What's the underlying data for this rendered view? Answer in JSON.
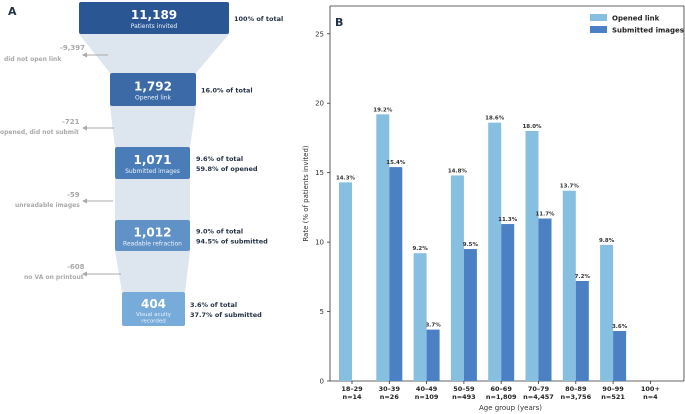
{
  "panel_a": {
    "label": "A",
    "stages": [
      {
        "value": "11,189",
        "name": "Patients invited",
        "stats": [
          "100% of total"
        ]
      },
      {
        "value": "1,792",
        "name": "Opened link",
        "stats": [
          "16.0% of total"
        ]
      },
      {
        "value": "1,071",
        "name": "Submitted images",
        "stats": [
          "9.6% of total",
          "59.8% of opened"
        ]
      },
      {
        "value": "1,012",
        "name": "Readable refraction",
        "stats": [
          "9.0% of total",
          "94.5% of submitted"
        ]
      },
      {
        "value": "404",
        "name": "Visual acuity recorded",
        "name_lines": [
          "Visual acuity",
          "recorded"
        ],
        "stats": [
          "3.6% of total",
          "37.7% of submitted"
        ]
      }
    ],
    "dropouts": [
      {
        "value": "-9,397",
        "label": "did not open link"
      },
      {
        "value": "-721",
        "label": "opened, did not submit"
      },
      {
        "value": "-59",
        "label": "unreadable images"
      },
      {
        "value": "-608",
        "label": "no VA on printout"
      }
    ],
    "colors": [
      "#2b5694",
      "#3b6aa7",
      "#4a7db8",
      "#6192c7",
      "#77abd9"
    ],
    "connector_color": "#dde5ef",
    "dropout_color": "#a9a9a9",
    "text_dark": "#233245"
  },
  "chart_data": {
    "type": "bar",
    "panel_label": "B",
    "categories": [
      "18–29",
      "30–39",
      "40–49",
      "50–59",
      "60–69",
      "70–79",
      "80–89",
      "90–99",
      "100+"
    ],
    "category_n": [
      "n=14",
      "n=26",
      "n=109",
      "n=493",
      "n=1,809",
      "n=4,457",
      "n=3,756",
      "n=521",
      "n=4"
    ],
    "series": [
      {
        "name": "Opened link",
        "color": "#87bfe0",
        "values": [
          14.3,
          19.2,
          9.2,
          14.8,
          18.6,
          18.0,
          13.7,
          9.8,
          0
        ],
        "labels": [
          "14.3%",
          "19.2%",
          "9.2%",
          "14.8%",
          "18.6%",
          "18.0%",
          "13.7%",
          "9.8%",
          ""
        ]
      },
      {
        "name": "Submitted images",
        "color": "#4b80c4",
        "values": [
          0,
          15.4,
          3.7,
          9.5,
          11.3,
          11.7,
          7.2,
          3.6,
          0
        ],
        "labels": [
          "",
          "15.4%",
          "3.7%",
          "9.5%",
          "11.3%",
          "11.7%",
          "7.2%",
          "3.6%",
          ""
        ]
      }
    ],
    "xlabel": "Age group (years)",
    "ylabel": "Rate (% of patients invited)",
    "ylim": [
      0,
      27
    ],
    "yticks": [
      0,
      5,
      10,
      15,
      20,
      25
    ],
    "grid": false,
    "legend": "top-right"
  }
}
